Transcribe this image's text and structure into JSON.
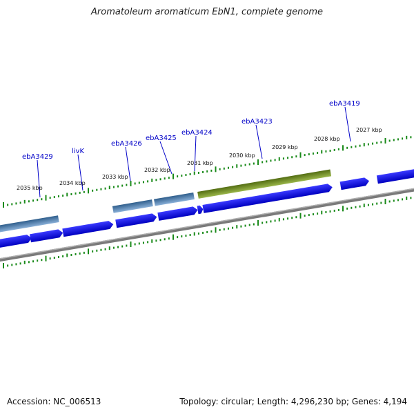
{
  "title": "Aromatoleum aromaticum EbN1, complete genome",
  "footer": {
    "accession": "Accession: NC_006513",
    "topology": "Topology: circular; Length: 4,296,230 bp; Genes: 4,194"
  },
  "ticks": [
    "2035 kbp",
    "2034 kbp",
    "2033 kbp",
    "2032 kbp",
    "2031 kbp",
    "2030 kbp",
    "2029 kbp",
    "2028 kbp",
    "2027 kbp"
  ],
  "gene_labels": [
    "ebA3429",
    "livK",
    "ebA3426",
    "ebA3425",
    "ebA3424",
    "ebA3423",
    "ebA3419"
  ],
  "colors": {
    "forward_gene": "#1010f0",
    "steelblue_feature": "#4a7db0",
    "olive_feature": "#6e8c1e",
    "backbone": "#808080",
    "tick_green": "#1a8a1a",
    "label_blue": "#0000c8"
  }
}
